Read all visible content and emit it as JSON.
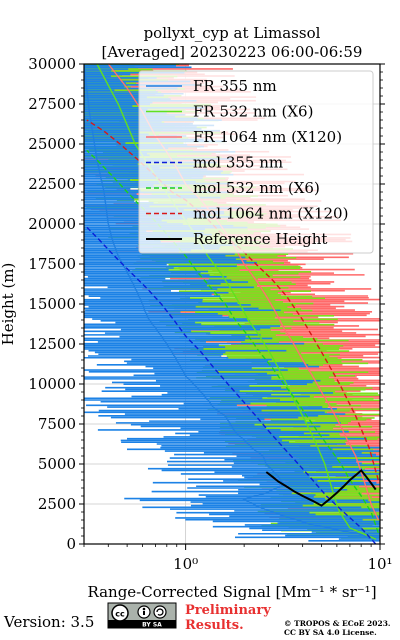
{
  "chart_data": {
    "type": "line",
    "title": [
      "pollyxt_cyp at Limassol",
      "[Averaged] 20230223 06:00-06:59"
    ],
    "xlabel": "Range-Corrected Signal [Mm⁻¹ * sr⁻¹]",
    "ylabel": "Height (m)",
    "xscale": "log",
    "xlim": [
      0.3,
      10
    ],
    "ylim": [
      0,
      30000
    ],
    "x_ticks": [
      {
        "value": 1,
        "label": "10⁰"
      },
      {
        "value": 10,
        "label": "10¹"
      }
    ],
    "y_ticks": [
      0,
      2500,
      5000,
      7500,
      10000,
      12500,
      15000,
      17500,
      20000,
      22500,
      25000,
      27500,
      30000
    ],
    "y_tick_labels": [
      "0",
      "2500",
      "5000",
      "7500",
      "10000",
      "12500",
      "15000",
      "17500",
      "20000",
      "22500",
      "25000",
      "27500",
      "30000"
    ],
    "grid": true,
    "legend_position": "top-right",
    "series": [
      {
        "name": "FR 355 nm",
        "color": "#1f7fe0",
        "style": "solid",
        "points": [
          [
            9.5,
            200
          ],
          [
            8,
            600
          ],
          [
            6,
            900
          ],
          [
            4.5,
            1200
          ],
          [
            3.5,
            1600
          ],
          [
            2.8,
            2000
          ],
          [
            2.3,
            2400
          ],
          [
            2.0,
            2800
          ],
          [
            2.6,
            3200
          ],
          [
            3.2,
            3700
          ],
          [
            3.0,
            4200
          ],
          [
            2.8,
            4600
          ],
          [
            2.6,
            5000
          ],
          [
            2.5,
            5500
          ],
          [
            2.2,
            6000
          ],
          [
            2.0,
            6500
          ],
          [
            1.8,
            7000
          ],
          [
            1.7,
            7500
          ],
          [
            1.6,
            8000
          ],
          [
            1.4,
            8500
          ],
          [
            1.3,
            9000
          ],
          [
            1.2,
            9500
          ],
          [
            1.1,
            10000
          ],
          [
            1.0,
            10500
          ],
          [
            0.95,
            11000
          ],
          [
            0.9,
            11500
          ],
          [
            0.85,
            12000
          ],
          [
            0.8,
            12500
          ],
          [
            0.75,
            13000
          ],
          [
            0.7,
            13500
          ],
          [
            0.65,
            14000
          ],
          [
            0.62,
            14500
          ],
          [
            0.6,
            15000
          ],
          [
            0.55,
            16000
          ],
          [
            0.5,
            17000
          ],
          [
            0.45,
            18000
          ],
          [
            0.42,
            19000
          ],
          [
            0.4,
            20000
          ],
          [
            0.38,
            22000
          ],
          [
            0.35,
            24000
          ],
          [
            0.32,
            27000
          ],
          [
            0.3,
            30000
          ]
        ]
      },
      {
        "name": "FR 532 nm (X6)",
        "color": "#60e020",
        "style": "solid",
        "points": [
          [
            9.5,
            300
          ],
          [
            8,
            700
          ],
          [
            7,
            1000
          ],
          [
            6.2,
            2000
          ],
          [
            5.8,
            3000
          ],
          [
            5.5,
            4000
          ],
          [
            5.2,
            5000
          ],
          [
            4.8,
            6000
          ],
          [
            4.4,
            7000
          ],
          [
            4.0,
            8000
          ],
          [
            3.6,
            9000
          ],
          [
            3.3,
            10000
          ],
          [
            3.0,
            11000
          ],
          [
            2.7,
            12000
          ],
          [
            2.4,
            13000
          ],
          [
            2.1,
            14000
          ],
          [
            1.9,
            15000
          ],
          [
            1.7,
            16000
          ],
          [
            1.5,
            17000
          ],
          [
            1.3,
            18000
          ],
          [
            1.1,
            19500
          ],
          [
            0.9,
            21000
          ],
          [
            0.7,
            23000
          ],
          [
            0.55,
            25000
          ],
          [
            0.45,
            27500
          ],
          [
            0.35,
            30000
          ]
        ]
      },
      {
        "name": "FR 1064 nm (X120)",
        "color": "#ff7070",
        "style": "solid",
        "points": [
          [
            9.8,
            1500
          ],
          [
            9.0,
            2500
          ],
          [
            8.5,
            3500
          ],
          [
            8.0,
            4500
          ],
          [
            7.5,
            5500
          ],
          [
            6.8,
            6500
          ],
          [
            6.2,
            7500
          ],
          [
            5.6,
            8500
          ],
          [
            5.0,
            9500
          ],
          [
            4.5,
            10500
          ],
          [
            4.0,
            11500
          ],
          [
            3.6,
            12500
          ],
          [
            3.2,
            13500
          ],
          [
            2.9,
            14500
          ],
          [
            2.6,
            15500
          ],
          [
            2.3,
            16500
          ],
          [
            2.0,
            17500
          ],
          [
            1.8,
            18500
          ],
          [
            1.6,
            19500
          ],
          [
            1.4,
            20500
          ],
          [
            1.2,
            21500
          ],
          [
            1.0,
            22500
          ],
          [
            0.9,
            23500
          ],
          [
            0.8,
            24500
          ],
          [
            0.7,
            25500
          ],
          [
            0.6,
            27000
          ],
          [
            0.5,
            28500
          ],
          [
            0.4,
            30000
          ]
        ]
      },
      {
        "name": "mol 355 nm",
        "color": "#0b1fd8",
        "style": "dashed",
        "points": [
          [
            9.5,
            0
          ],
          [
            8.0,
            1000
          ],
          [
            6.5,
            2000
          ],
          [
            5.3,
            3000
          ],
          [
            4.5,
            4000
          ],
          [
            3.8,
            5000
          ],
          [
            3.2,
            6000
          ],
          [
            2.7,
            7000
          ],
          [
            2.3,
            8000
          ],
          [
            1.95,
            9000
          ],
          [
            1.65,
            10000
          ],
          [
            1.4,
            11000
          ],
          [
            1.2,
            12000
          ],
          [
            1.0,
            13000
          ],
          [
            0.87,
            14000
          ],
          [
            0.75,
            15000
          ],
          [
            0.63,
            16000
          ],
          [
            0.52,
            17000
          ],
          [
            0.43,
            18000
          ],
          [
            0.36,
            19000
          ],
          [
            0.31,
            19800
          ]
        ]
      },
      {
        "name": "mol 532 nm (X6)",
        "color": "#1ccf1c",
        "style": "dashed",
        "points": [
          [
            9.8,
            700
          ],
          [
            9.0,
            2000
          ],
          [
            8.0,
            3000
          ],
          [
            7.0,
            4000
          ],
          [
            6.3,
            5000
          ],
          [
            5.5,
            6000
          ],
          [
            4.8,
            7000
          ],
          [
            4.2,
            8000
          ],
          [
            3.7,
            9000
          ],
          [
            3.2,
            10000
          ],
          [
            2.8,
            11000
          ],
          [
            2.4,
            12000
          ],
          [
            2.1,
            13000
          ],
          [
            1.8,
            14000
          ],
          [
            1.6,
            15000
          ],
          [
            1.35,
            16000
          ],
          [
            1.15,
            17000
          ],
          [
            1.0,
            18000
          ],
          [
            0.85,
            19000
          ],
          [
            0.72,
            20000
          ],
          [
            0.6,
            21000
          ],
          [
            0.5,
            22000
          ],
          [
            0.42,
            23000
          ],
          [
            0.35,
            24000
          ],
          [
            0.31,
            24600
          ]
        ]
      },
      {
        "name": "mol 1064 nm (X120)",
        "color": "#d81818",
        "style": "dashed",
        "points": [
          [
            9.8,
            4000
          ],
          [
            8.8,
            6000
          ],
          [
            7.5,
            8000
          ],
          [
            6.2,
            10000
          ],
          [
            5.0,
            12000
          ],
          [
            4.0,
            14000
          ],
          [
            3.3,
            15500
          ],
          [
            2.8,
            16500
          ],
          [
            2.3,
            17500
          ],
          [
            1.9,
            18500
          ],
          [
            1.5,
            19500
          ],
          [
            1.25,
            20500
          ],
          [
            1.0,
            21500
          ],
          [
            0.85,
            22000
          ],
          [
            0.7,
            23000
          ],
          [
            0.57,
            24000
          ],
          [
            0.46,
            25000
          ],
          [
            0.38,
            25800
          ],
          [
            0.31,
            26500
          ]
        ]
      },
      {
        "name": "Reference Height",
        "color": "#000000",
        "style": "solid",
        "points": [
          [
            2.6,
            4500
          ],
          [
            2.8,
            4200
          ],
          [
            3.0,
            3900
          ],
          [
            3.3,
            3600
          ],
          [
            3.6,
            3300
          ],
          [
            4.0,
            3000
          ],
          [
            4.5,
            2700
          ],
          [
            5.0,
            2400
          ],
          [
            5.5,
            2800
          ],
          [
            6.0,
            3200
          ],
          [
            6.5,
            3600
          ],
          [
            7.0,
            4000
          ],
          [
            7.5,
            4300
          ],
          [
            8.0,
            4600
          ],
          [
            8.5,
            4200
          ],
          [
            9.0,
            3800
          ],
          [
            9.5,
            3400
          ]
        ]
      }
    ]
  },
  "footer": {
    "version": "Version: 3.5",
    "license_badge": "cc-by-sa-icon",
    "license_badge_text": "BY   SA",
    "preliminary_line1": "Preliminary",
    "preliminary_line2": "Results.",
    "copyright_line1": "© TROPOS & ECoE 2023.",
    "copyright_line2": "CC BY SA 4.0 License."
  }
}
